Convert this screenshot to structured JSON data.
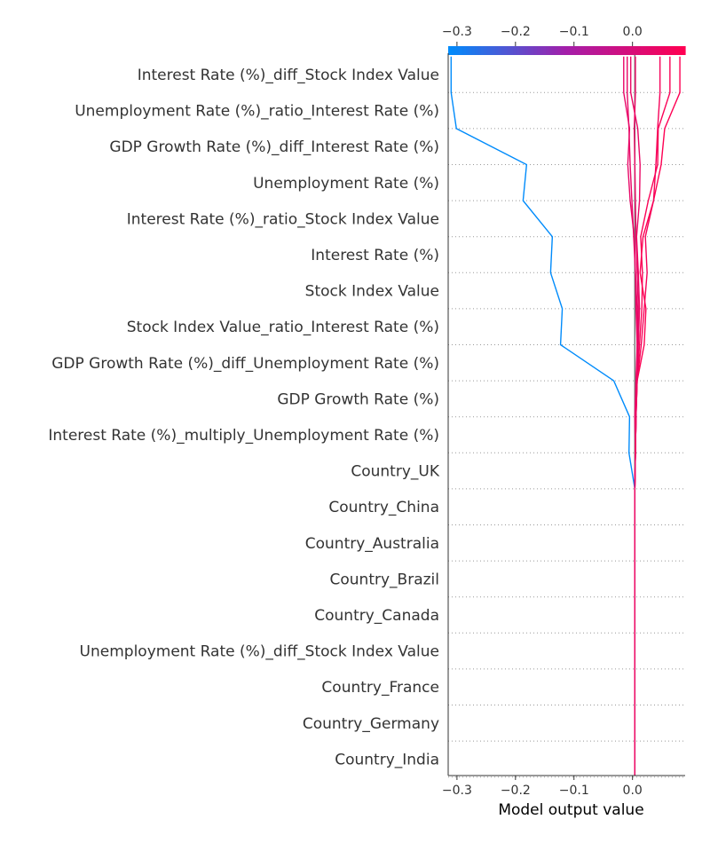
{
  "chart_data": {
    "type": "line",
    "xlabel": "Model output value",
    "xlim": [
      -0.315,
      0.09
    ],
    "xticks": [
      "−0.3",
      "−0.2",
      "−0.1",
      "0.0"
    ],
    "xtick_values": [
      -0.3,
      -0.2,
      -0.1,
      0.0
    ],
    "base_value": 0.004,
    "grid": "dotted horizontal per feature",
    "colormap": {
      "from": "#008bfb",
      "via": "#a41ea9",
      "to": "#ff0052"
    },
    "features": [
      "Interest Rate (%)_diff_Stock Index Value",
      "Unemployment Rate (%)_ratio_Interest Rate (%)",
      "GDP Growth Rate (%)_diff_Interest Rate (%)",
      "Unemployment Rate (%)",
      "Interest Rate (%)_ratio_Stock Index Value",
      "Interest Rate (%)",
      "Stock Index Value",
      "Stock Index Value_ratio_Interest Rate (%)",
      "GDP Growth Rate (%)_diff_Unemployment Rate (%)",
      "GDP Growth Rate (%)",
      "Interest Rate (%)_multiply_Unemployment Rate (%)",
      "Country_UK",
      "Country_China",
      "Country_Australia",
      "Country_Brazil",
      "Country_Canada",
      "Unemployment Rate (%)_diff_Stock Index Value",
      "Country_France",
      "Country_Germany",
      "Country_India"
    ],
    "series": [
      {
        "values": [
          0.004,
          0.004,
          0.004,
          0.004,
          0.004,
          0.004,
          0.004,
          0.004,
          0.004,
          -0.006,
          -0.005,
          -0.032,
          -0.123,
          -0.12,
          -0.14,
          -0.137,
          -0.187,
          -0.181,
          -0.301,
          -0.31
        ],
        "output": -0.31
      },
      {
        "values": [
          0.004,
          0.004,
          0.004,
          0.004,
          0.004,
          0.004,
          0.004,
          0.004,
          0.004,
          0.005,
          0.004,
          0.006,
          0.008,
          0.008,
          0.005,
          0.003,
          -0.004,
          -0.008,
          -0.005,
          -0.015
        ],
        "output": -0.015
      },
      {
        "values": [
          0.004,
          0.004,
          0.004,
          0.004,
          0.004,
          0.004,
          0.004,
          0.004,
          0.004,
          0.005,
          0.006,
          0.007,
          0.008,
          0.006,
          0.005,
          0.002,
          -0.001,
          -0.004,
          -0.006,
          -0.009
        ],
        "output": -0.009
      },
      {
        "values": [
          0.004,
          0.004,
          0.004,
          0.004,
          0.004,
          0.004,
          0.004,
          0.004,
          0.004,
          0.005,
          0.006,
          0.008,
          0.012,
          0.016,
          0.017,
          0.014,
          0.027,
          0.043,
          0.044,
          0.064
        ],
        "output": 0.064
      },
      {
        "values": [
          0.004,
          0.004,
          0.004,
          0.004,
          0.004,
          0.004,
          0.004,
          0.004,
          0.004,
          0.005,
          0.006,
          0.008,
          0.02,
          0.023,
          0.013,
          0.018,
          0.036,
          0.049,
          0.055,
          0.081
        ],
        "output": 0.081
      },
      {
        "values": [
          0.004,
          0.004,
          0.004,
          0.004,
          0.004,
          0.004,
          0.004,
          0.004,
          0.004,
          0.005,
          0.006,
          0.008,
          0.015,
          0.02,
          0.025,
          0.022,
          0.036,
          0.04,
          0.043,
          0.047
        ],
        "output": 0.047
      },
      {
        "values": [
          0.004,
          0.004,
          0.004,
          0.004,
          0.004,
          0.004,
          0.004,
          0.004,
          0.004,
          0.005,
          0.006,
          0.007,
          0.01,
          0.012,
          0.01,
          0.007,
          0.012,
          0.013,
          0.009,
          -0.003
        ],
        "output": -0.003
      },
      {
        "values": [
          0.004,
          0.004,
          0.004,
          0.004,
          0.004,
          0.004,
          0.004,
          0.004,
          0.004,
          0.005,
          0.006,
          0.006,
          0.009,
          0.01,
          0.008,
          0.006,
          0.005,
          0.004,
          0.003,
          0.005
        ],
        "output": 0.005
      }
    ]
  }
}
